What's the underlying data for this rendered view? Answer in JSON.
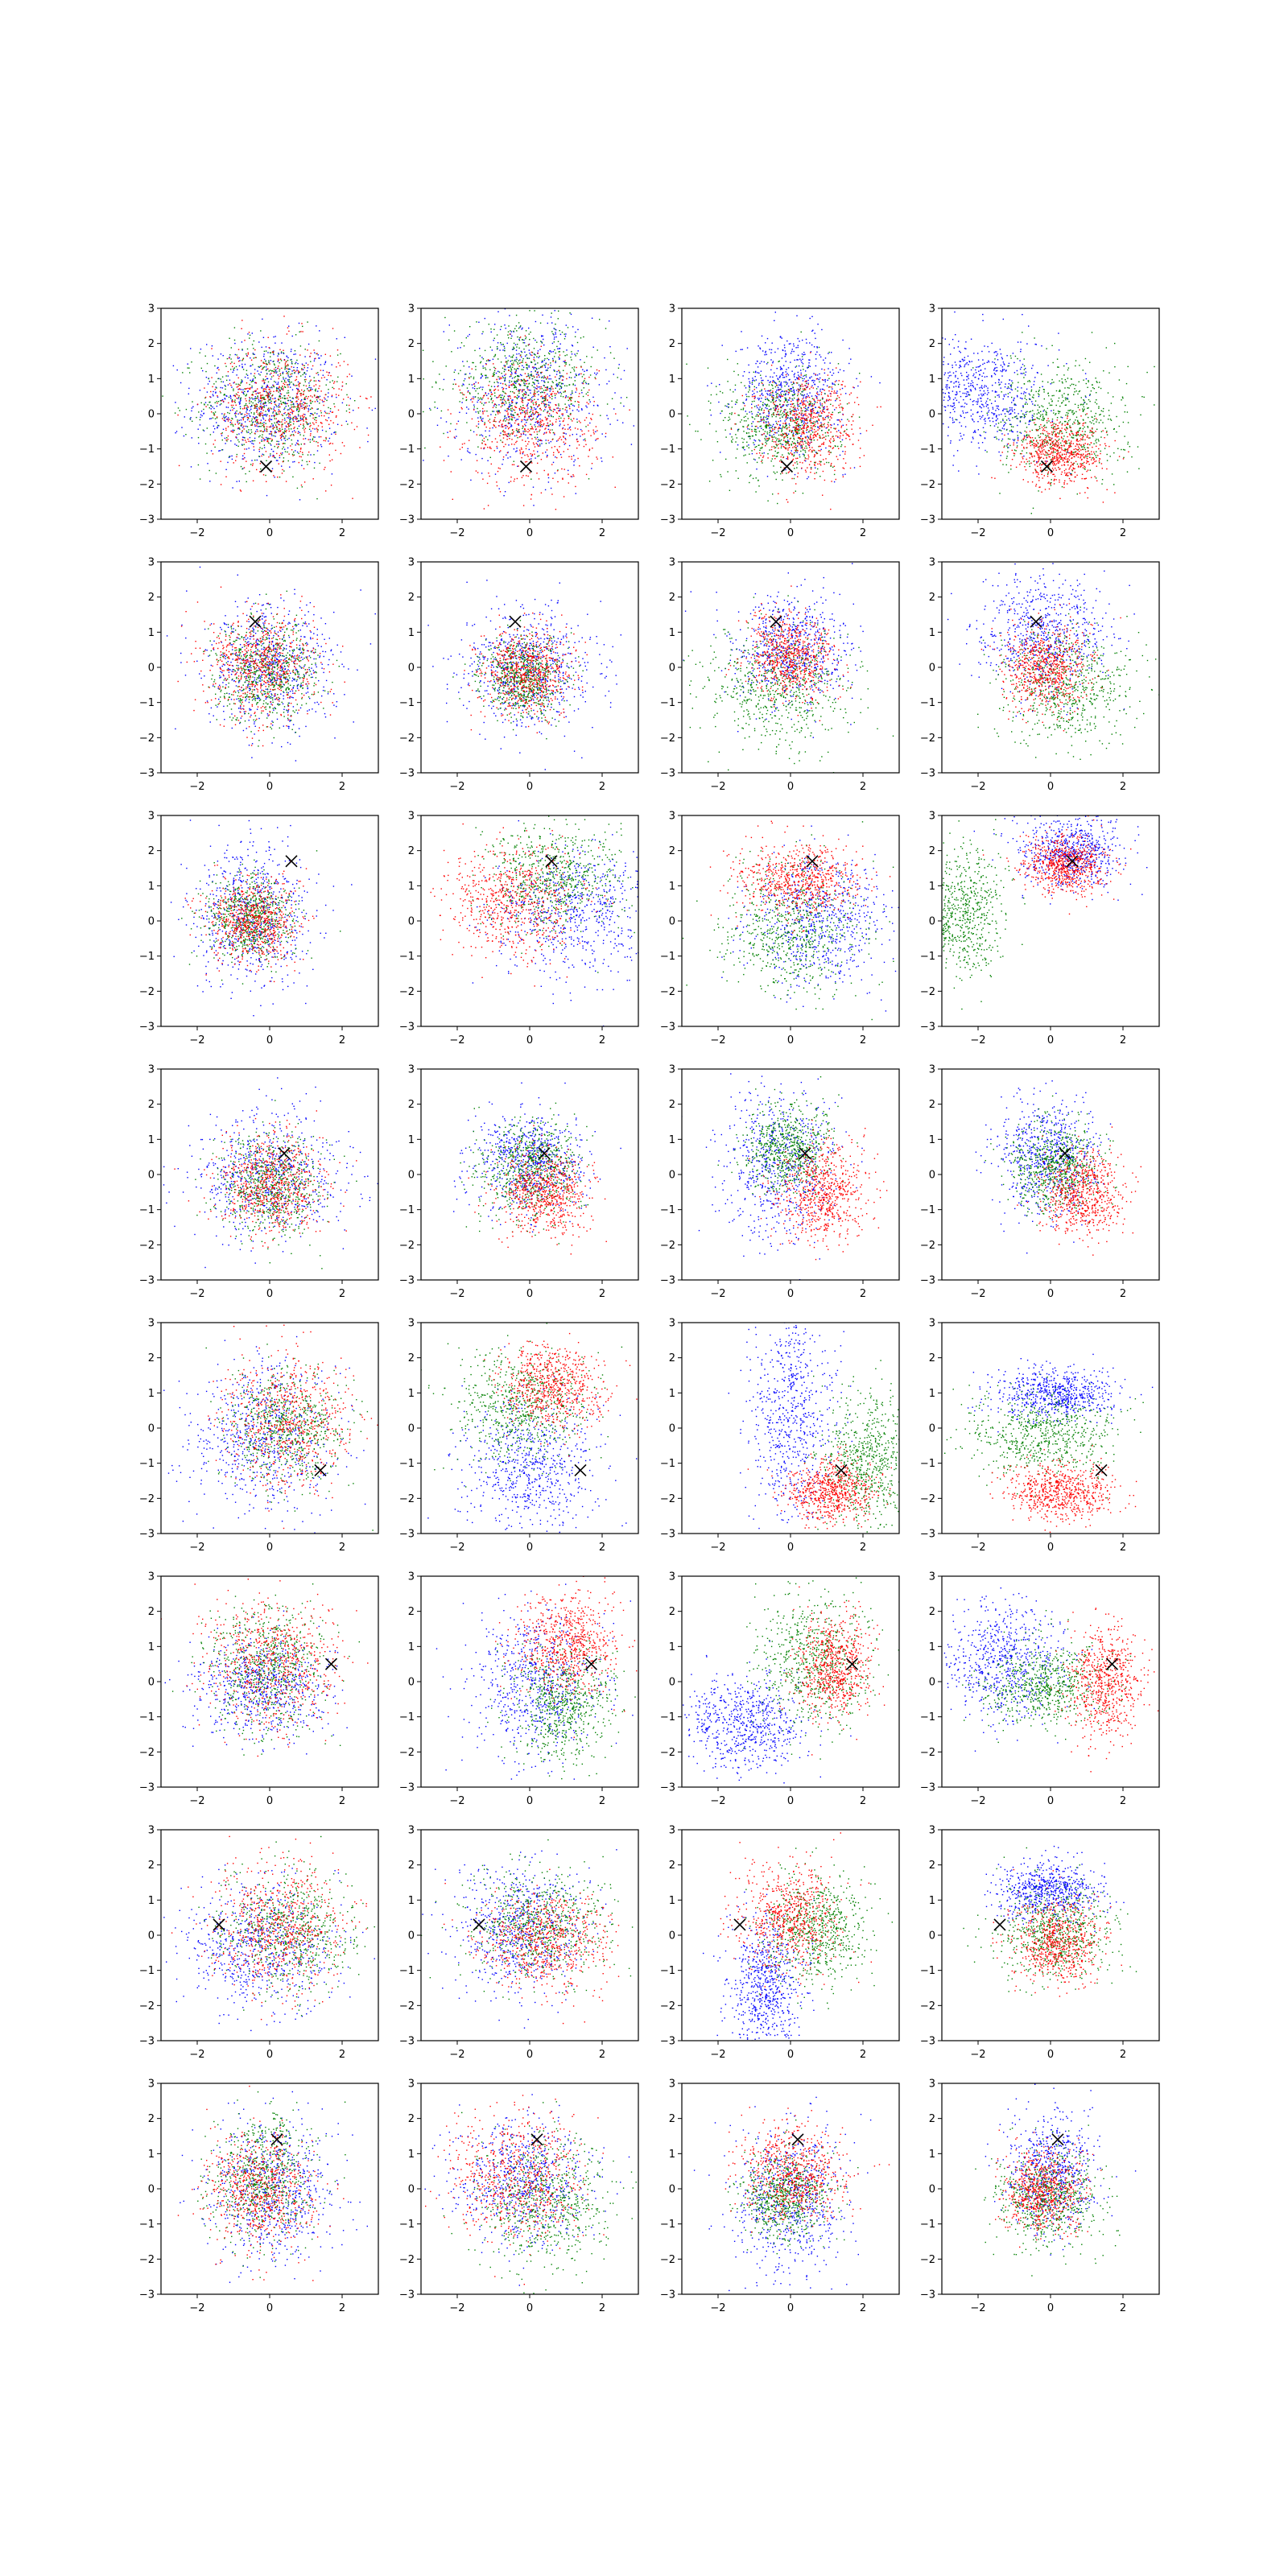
{
  "chart_data": {
    "type": "scatter",
    "layout": {
      "rows": 8,
      "cols": 4
    },
    "xlim": [
      -3,
      3
    ],
    "ylim": [
      -3,
      3
    ],
    "xticks": [
      "−2",
      "0",
      "2"
    ],
    "yticks": [
      "3",
      "2",
      "1",
      "0",
      "−1",
      "−2",
      "−3"
    ],
    "xtick_values": [
      -2,
      0,
      2
    ],
    "ytick_values": [
      3,
      2,
      1,
      0,
      -1,
      -2,
      -3
    ],
    "grid": false,
    "legend": "none",
    "series_colors": [
      "#0000ff",
      "#008000",
      "#ff0000"
    ],
    "marker_symbol": "×",
    "marker_color": "#000000",
    "points_per_cluster": 650,
    "rows_data": [
      {
        "marker": [
          -0.1,
          -1.5
        ],
        "panels": [
          [
            [
              -0.1,
              0.3,
              1.0,
              0.95
            ],
            [
              0.0,
              0.3,
              0.95,
              0.9
            ],
            [
              0.3,
              0.2,
              0.95,
              0.9
            ]
          ],
          [
            [
              0.0,
              0.6,
              1.1,
              1.1
            ],
            [
              -0.2,
              0.9,
              1.1,
              0.8
            ],
            [
              0.0,
              -0.2,
              0.9,
              0.9
            ]
          ],
          [
            [
              0.0,
              0.6,
              0.75,
              0.85
            ],
            [
              -0.3,
              -0.3,
              0.8,
              0.8
            ],
            [
              0.4,
              -0.3,
              0.7,
              0.7
            ]
          ],
          [
            [
              -1.9,
              0.6,
              0.9,
              0.8
            ],
            [
              0.3,
              -0.2,
              0.9,
              0.8
            ],
            [
              0.3,
              -1.1,
              0.6,
              0.45
            ]
          ]
        ]
      },
      {
        "marker": [
          -0.4,
          1.3
        ],
        "panels": [
          [
            [
              0.0,
              0.0,
              0.9,
              0.9
            ],
            [
              -0.1,
              -0.1,
              0.7,
              0.7
            ],
            [
              -0.2,
              0.1,
              0.75,
              0.75
            ]
          ],
          [
            [
              0.0,
              0.0,
              0.9,
              0.85
            ],
            [
              -0.2,
              -0.3,
              0.55,
              0.55
            ],
            [
              -0.1,
              -0.1,
              0.6,
              0.6
            ]
          ],
          [
            [
              0.0,
              0.5,
              0.8,
              0.8
            ],
            [
              -0.3,
              -0.6,
              1.0,
              0.9
            ],
            [
              0.0,
              0.3,
              0.6,
              0.6
            ]
          ],
          [
            [
              -0.2,
              1.0,
              0.9,
              0.8
            ],
            [
              0.4,
              -0.5,
              0.9,
              0.8
            ],
            [
              -0.1,
              0.0,
              0.6,
              0.6
            ]
          ]
        ]
      },
      {
        "marker": [
          0.6,
          1.7
        ],
        "panels": [
          [
            [
              -0.5,
              0.2,
              0.8,
              1.0
            ],
            [
              -0.6,
              0.1,
              0.6,
              0.6
            ],
            [
              -0.5,
              0.0,
              0.6,
              0.6
            ]
          ],
          [
            [
              1.2,
              0.2,
              1.1,
              0.9
            ],
            [
              0.6,
              1.2,
              0.9,
              0.8
            ],
            [
              -0.5,
              0.6,
              0.9,
              0.8
            ]
          ],
          [
            [
              0.8,
              0.0,
              0.9,
              0.9
            ],
            [
              0.0,
              -0.2,
              1.0,
              0.9
            ],
            [
              0.2,
              1.2,
              0.8,
              0.5
            ]
          ],
          [
            [
              0.6,
              2.0,
              0.7,
              0.5
            ],
            [
              -2.5,
              0.2,
              0.6,
              0.9
            ],
            [
              0.4,
              1.6,
              0.55,
              0.4
            ]
          ]
        ]
      },
      {
        "marker": [
          0.4,
          0.6
        ],
        "panels": [
          [
            [
              0.0,
              0.0,
              1.0,
              0.9
            ],
            [
              0.0,
              -0.4,
              0.7,
              0.7
            ],
            [
              0.1,
              -0.3,
              0.7,
              0.7
            ]
          ],
          [
            [
              0.0,
              0.4,
              0.8,
              0.7
            ],
            [
              0.0,
              0.2,
              0.7,
              0.7
            ],
            [
              0.4,
              -0.5,
              0.6,
              0.6
            ]
          ],
          [
            [
              -0.3,
              0.4,
              0.8,
              1.1
            ],
            [
              -0.1,
              0.7,
              0.6,
              0.6
            ],
            [
              0.9,
              -0.5,
              0.6,
              0.7
            ]
          ],
          [
            [
              -0.1,
              0.5,
              0.7,
              0.8
            ],
            [
              0.1,
              0.3,
              0.6,
              0.6
            ],
            [
              0.9,
              -0.5,
              0.55,
              0.6
            ]
          ]
        ]
      },
      {
        "marker": [
          1.4,
          -1.2
        ],
        "panels": [
          [
            [
              -0.2,
              -0.2,
              1.0,
              1.0
            ],
            [
              0.4,
              0.0,
              0.8,
              0.8
            ],
            [
              0.5,
              0.2,
              0.9,
              0.9
            ]
          ],
          [
            [
              0.0,
              -1.2,
              0.9,
              0.9
            ],
            [
              -0.3,
              0.6,
              0.9,
              0.8
            ],
            [
              0.6,
              1.2,
              0.7,
              0.6
            ]
          ],
          [
            [
              0.0,
              0.3,
              0.6,
              1.6
            ],
            [
              2.1,
              -1.0,
              0.6,
              1.0
            ],
            [
              1.1,
              -1.8,
              0.6,
              0.45
            ]
          ],
          [
            [
              0.1,
              1.0,
              0.8,
              0.35
            ],
            [
              -0.3,
              -0.2,
              1.0,
              0.6
            ],
            [
              0.3,
              -1.8,
              0.7,
              0.4
            ]
          ]
        ]
      },
      {
        "marker": [
          1.7,
          0.5
        ],
        "panels": [
          [
            [
              -0.2,
              -0.2,
              0.9,
              0.7
            ],
            [
              -0.1,
              0.4,
              0.8,
              0.9
            ],
            [
              0.0,
              0.5,
              0.9,
              0.9
            ]
          ],
          [
            [
              0.2,
              -0.1,
              0.9,
              1.0
            ],
            [
              0.9,
              -0.6,
              0.7,
              0.8
            ],
            [
              1.0,
              1.1,
              0.7,
              0.7
            ]
          ],
          [
            [
              -1.3,
              -1.2,
              0.8,
              0.7
            ],
            [
              0.6,
              0.6,
              0.8,
              0.9
            ],
            [
              1.2,
              0.4,
              0.5,
              0.7
            ]
          ],
          [
            [
              -1.3,
              0.6,
              0.8,
              0.8
            ],
            [
              -0.2,
              -0.1,
              0.8,
              0.6
            ],
            [
              1.5,
              0.0,
              0.5,
              0.8
            ]
          ]
        ]
      },
      {
        "marker": [
          -1.4,
          0.3
        ],
        "panels": [
          [
            [
              -0.3,
              -0.3,
              1.0,
              0.9
            ],
            [
              0.5,
              0.1,
              0.9,
              0.9
            ],
            [
              0.2,
              0.2,
              0.9,
              0.9
            ]
          ],
          [
            [
              -0.3,
              0.3,
              0.9,
              0.9
            ],
            [
              0.2,
              0.3,
              0.9,
              0.8
            ],
            [
              0.4,
              -0.1,
              0.9,
              0.7
            ]
          ],
          [
            [
              -0.7,
              -1.5,
              0.5,
              1.0
            ],
            [
              0.7,
              0.2,
              0.7,
              0.8
            ],
            [
              0.0,
              0.5,
              0.7,
              0.8
            ]
          ],
          [
            [
              -0.1,
              1.3,
              0.7,
              0.4
            ],
            [
              0.1,
              0.1,
              0.8,
              0.7
            ],
            [
              0.2,
              -0.2,
              0.6,
              0.6
            ]
          ]
        ]
      },
      {
        "marker": [
          0.2,
          1.4
        ],
        "panels": [
          [
            [
              0.0,
              0.0,
              0.9,
              1.0
            ],
            [
              -0.2,
              0.3,
              0.7,
              0.9
            ],
            [
              -0.3,
              0.0,
              0.7,
              0.8
            ]
          ],
          [
            [
              -0.2,
              0.3,
              0.9,
              0.9
            ],
            [
              0.4,
              -0.4,
              0.9,
              0.9
            ],
            [
              -0.4,
              0.3,
              0.9,
              0.9
            ]
          ],
          [
            [
              0.0,
              -0.3,
              0.8,
              1.0
            ],
            [
              -0.2,
              -0.2,
              0.6,
              0.6
            ],
            [
              0.0,
              0.4,
              0.7,
              0.7
            ]
          ],
          [
            [
              0.0,
              0.5,
              0.6,
              0.8
            ],
            [
              0.0,
              -0.3,
              0.7,
              0.7
            ],
            [
              -0.2,
              0.0,
              0.55,
              0.6
            ]
          ]
        ]
      }
    ]
  }
}
